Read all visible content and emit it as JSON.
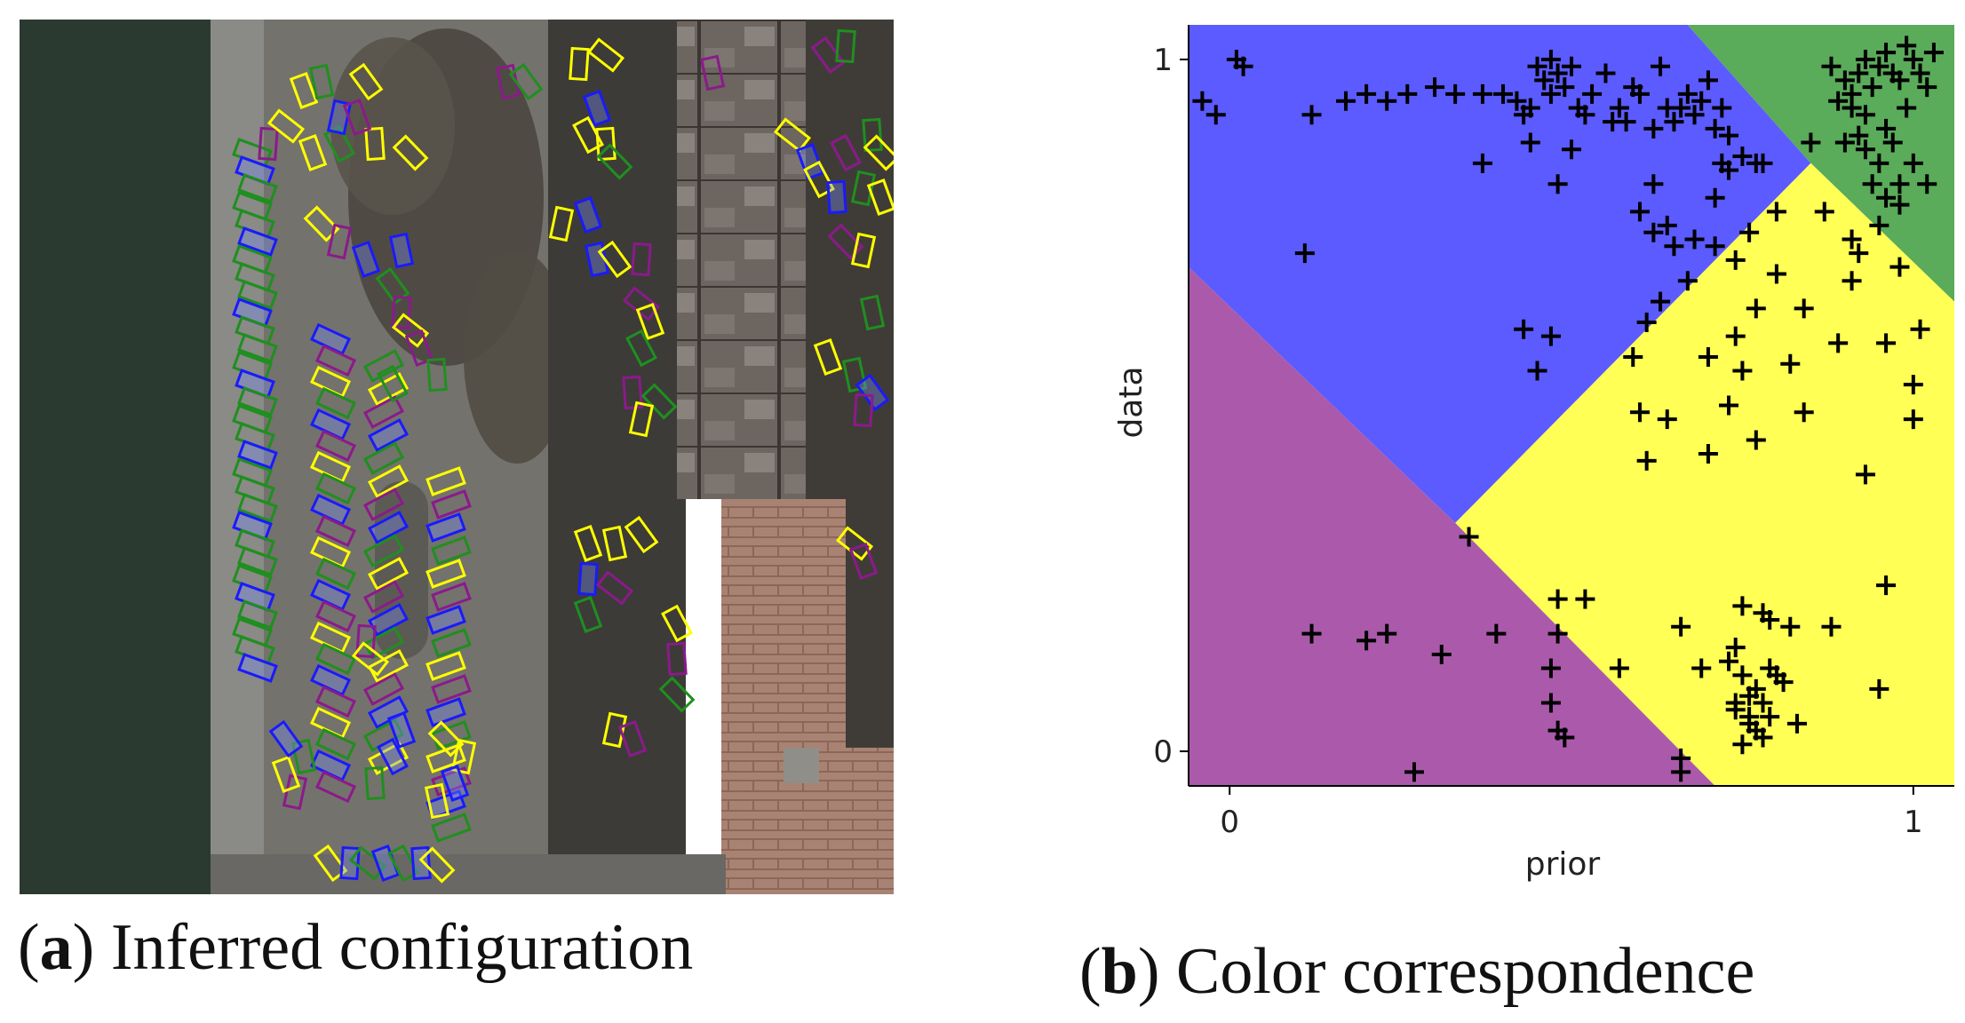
{
  "figure": {
    "panel_a": {
      "caption_label": "a",
      "caption_text": "Inferred configuration",
      "box_colors": {
        "blue": "#1a1aff",
        "green": "#1f8f1f",
        "yellow": "#ffff00",
        "purple": "#8b1a8b"
      }
    },
    "panel_b": {
      "caption_label": "b",
      "caption_text": "Color correspondence"
    }
  },
  "chart_data": {
    "type": "scatter",
    "xlabel": "prior",
    "ylabel": "data",
    "xlim": [
      -0.06,
      1.06
    ],
    "ylim": [
      -0.05,
      1.05
    ],
    "xticks": [
      {
        "value": 0,
        "label": "0"
      },
      {
        "value": 1,
        "label": "1"
      }
    ],
    "yticks": [
      {
        "value": 0,
        "label": "0"
      },
      {
        "value": 1,
        "label": "1"
      }
    ],
    "marker": "+",
    "region_colors": {
      "blue": "#5b5bff",
      "green": "#5aab5a",
      "yellow": "#ffff55",
      "purple": "#ab5aab"
    },
    "regions": [
      {
        "color": "blue",
        "polygon": [
          [
            -0.06,
            1.05
          ],
          [
            0.67,
            1.05
          ],
          [
            0.85,
            0.85
          ],
          [
            0.33,
            0.33
          ],
          [
            -0.06,
            0.7
          ]
        ]
      },
      {
        "color": "green",
        "polygon": [
          [
            0.67,
            1.05
          ],
          [
            1.06,
            1.05
          ],
          [
            1.06,
            0.65
          ],
          [
            0.85,
            0.85
          ]
        ]
      },
      {
        "color": "yellow",
        "polygon": [
          [
            0.85,
            0.85
          ],
          [
            1.06,
            0.65
          ],
          [
            1.06,
            -0.05
          ],
          [
            0.71,
            -0.05
          ],
          [
            0.33,
            0.33
          ]
        ]
      },
      {
        "color": "purple",
        "polygon": [
          [
            -0.06,
            0.7
          ],
          [
            0.33,
            0.33
          ],
          [
            0.71,
            -0.05
          ],
          [
            -0.06,
            -0.05
          ]
        ]
      }
    ],
    "points": [
      [
        -0.04,
        0.94
      ],
      [
        -0.02,
        0.92
      ],
      [
        0.01,
        1.0
      ],
      [
        0.02,
        0.99
      ],
      [
        0.12,
        0.92
      ],
      [
        0.17,
        0.94
      ],
      [
        0.2,
        0.95
      ],
      [
        0.23,
        0.94
      ],
      [
        0.26,
        0.95
      ],
      [
        0.3,
        0.96
      ],
      [
        0.33,
        0.95
      ],
      [
        0.37,
        0.95
      ],
      [
        0.37,
        0.85
      ],
      [
        0.4,
        0.95
      ],
      [
        0.42,
        0.94
      ],
      [
        0.43,
        0.92
      ],
      [
        0.44,
        0.93
      ],
      [
        0.45,
        0.99
      ],
      [
        0.46,
        0.97
      ],
      [
        0.47,
        1.0
      ],
      [
        0.48,
        0.98
      ],
      [
        0.49,
        0.96
      ],
      [
        0.5,
        0.99
      ],
      [
        0.51,
        0.93
      ],
      [
        0.52,
        0.92
      ],
      [
        0.53,
        0.95
      ],
      [
        0.55,
        0.98
      ],
      [
        0.56,
        0.91
      ],
      [
        0.57,
        0.93
      ],
      [
        0.59,
        0.96
      ],
      [
        0.6,
        0.95
      ],
      [
        0.62,
        0.9
      ],
      [
        0.63,
        0.99
      ],
      [
        0.64,
        0.93
      ],
      [
        0.65,
        0.91
      ],
      [
        0.66,
        0.93
      ],
      [
        0.67,
        0.95
      ],
      [
        0.68,
        0.92
      ],
      [
        0.69,
        0.94
      ],
      [
        0.7,
        0.97
      ],
      [
        0.71,
        0.9
      ],
      [
        0.72,
        0.93
      ],
      [
        0.73,
        0.89
      ],
      [
        0.75,
        0.86
      ],
      [
        0.77,
        0.85
      ],
      [
        0.78,
        0.85
      ],
      [
        0.48,
        0.82
      ],
      [
        0.6,
        0.78
      ],
      [
        0.62,
        0.75
      ],
      [
        0.64,
        0.76
      ],
      [
        0.65,
        0.73
      ],
      [
        0.68,
        0.74
      ],
      [
        0.71,
        0.8
      ],
      [
        0.72,
        0.85
      ],
      [
        0.73,
        0.84
      ],
      [
        0.71,
        0.73
      ],
      [
        0.74,
        0.71
      ],
      [
        0.76,
        0.75
      ],
      [
        0.8,
        0.78
      ],
      [
        0.47,
        0.95
      ],
      [
        0.44,
        0.88
      ],
      [
        0.5,
        0.87
      ],
      [
        0.62,
        0.82
      ],
      [
        0.58,
        0.91
      ],
      [
        0.11,
        0.72
      ],
      [
        0.43,
        0.61
      ],
      [
        0.45,
        0.55
      ],
      [
        0.47,
        0.6
      ],
      [
        0.88,
        0.99
      ],
      [
        0.9,
        0.97
      ],
      [
        0.91,
        0.95
      ],
      [
        0.92,
        0.98
      ],
      [
        0.93,
        1.0
      ],
      [
        0.94,
        0.96
      ],
      [
        0.95,
        0.99
      ],
      [
        0.96,
        1.01
      ],
      [
        0.97,
        0.98
      ],
      [
        0.98,
        0.97
      ],
      [
        0.99,
        1.02
      ],
      [
        1.0,
        1.0
      ],
      [
        1.01,
        0.98
      ],
      [
        1.02,
        0.96
      ],
      [
        1.03,
        1.01
      ],
      [
        0.96,
        0.9
      ],
      [
        0.97,
        0.88
      ],
      [
        0.95,
        0.85
      ],
      [
        0.93,
        0.87
      ],
      [
        0.99,
        0.93
      ],
      [
        1.0,
        0.85
      ],
      [
        1.02,
        0.82
      ],
      [
        0.98,
        0.82
      ],
      [
        0.96,
        0.8
      ],
      [
        0.94,
        0.82
      ],
      [
        0.92,
        0.89
      ],
      [
        0.9,
        0.88
      ],
      [
        0.89,
        0.94
      ],
      [
        0.93,
        0.92
      ],
      [
        0.91,
        0.93
      ],
      [
        0.87,
        0.78
      ],
      [
        0.91,
        0.74
      ],
      [
        0.92,
        0.72
      ],
      [
        0.95,
        0.76
      ],
      [
        0.98,
        0.7
      ],
      [
        0.91,
        0.68
      ],
      [
        0.98,
        0.79
      ],
      [
        0.85,
        0.88
      ],
      [
        0.67,
        0.68
      ],
      [
        0.63,
        0.65
      ],
      [
        0.61,
        0.62
      ],
      [
        0.7,
        0.57
      ],
      [
        0.74,
        0.6
      ],
      [
        0.77,
        0.64
      ],
      [
        0.75,
        0.55
      ],
      [
        0.8,
        0.69
      ],
      [
        0.82,
        0.56
      ],
      [
        0.59,
        0.57
      ],
      [
        0.6,
        0.49
      ],
      [
        0.64,
        0.48
      ],
      [
        0.61,
        0.42
      ],
      [
        0.7,
        0.43
      ],
      [
        0.73,
        0.5
      ],
      [
        0.77,
        0.45
      ],
      [
        0.84,
        0.49
      ],
      [
        0.84,
        0.64
      ],
      [
        0.89,
        0.59
      ],
      [
        0.96,
        0.59
      ],
      [
        1.0,
        0.48
      ],
      [
        1.01,
        0.61
      ],
      [
        1.0,
        0.53
      ],
      [
        0.93,
        0.4
      ],
      [
        0.35,
        0.31
      ],
      [
        0.12,
        0.17
      ],
      [
        0.2,
        0.16
      ],
      [
        0.23,
        0.17
      ],
      [
        0.31,
        0.14
      ],
      [
        0.39,
        0.17
      ],
      [
        0.48,
        0.17
      ],
      [
        0.48,
        0.22
      ],
      [
        0.52,
        0.22
      ],
      [
        0.47,
        0.12
      ],
      [
        0.47,
        0.07
      ],
      [
        0.48,
        0.03
      ],
      [
        0.49,
        0.02
      ],
      [
        0.27,
        -0.03
      ],
      [
        0.66,
        -0.03
      ],
      [
        0.66,
        -0.01
      ],
      [
        0.57,
        0.12
      ],
      [
        0.66,
        0.18
      ],
      [
        0.69,
        0.12
      ],
      [
        0.73,
        0.13
      ],
      [
        0.74,
        0.15
      ],
      [
        0.75,
        0.11
      ],
      [
        0.76,
        0.08
      ],
      [
        0.77,
        0.09
      ],
      [
        0.78,
        0.2
      ],
      [
        0.79,
        0.12
      ],
      [
        0.8,
        0.11
      ],
      [
        0.76,
        0.04
      ],
      [
        0.74,
        0.06
      ],
      [
        0.75,
        0.01
      ],
      [
        0.77,
        0.03
      ],
      [
        0.79,
        0.19
      ],
      [
        0.82,
        0.18
      ],
      [
        0.79,
        0.05
      ],
      [
        0.78,
        0.02
      ],
      [
        0.83,
        0.04
      ],
      [
        0.78,
        0.07
      ],
      [
        0.88,
        0.18
      ],
      [
        0.75,
        0.21
      ],
      [
        0.96,
        0.24
      ],
      [
        0.95,
        0.09
      ],
      [
        0.74,
        0.07
      ],
      [
        0.76,
        0.05
      ],
      [
        0.81,
        0.1
      ]
    ]
  }
}
